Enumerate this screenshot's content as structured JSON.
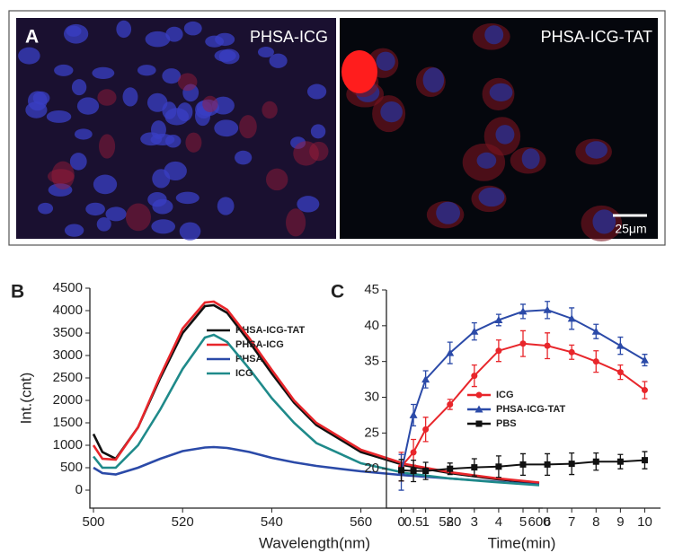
{
  "figure": {
    "panels": [
      "A",
      "B",
      "C"
    ],
    "image_labels": [
      "PHSA-ICG",
      "PHSA-ICG-TAT"
    ],
    "scale_bar": "25μm"
  },
  "chart_data": [
    {
      "type": "line",
      "x_label": "Wavelength(nm)",
      "y_label": "Int.(cnt)",
      "x": [
        500,
        502,
        505,
        510,
        515,
        520,
        525,
        527,
        530,
        535,
        540,
        545,
        550,
        560,
        570,
        580,
        590,
        600
      ],
      "xlim": [
        500,
        600
      ],
      "xticks": [
        500,
        520,
        540,
        560,
        580,
        600
      ],
      "ylim": [
        -400,
        4500
      ],
      "yticks": [
        0,
        500,
        1000,
        1500,
        2000,
        2500,
        3000,
        3500,
        4000,
        4500
      ],
      "series": [
        {
          "name": "PHSA-ICG-TAT",
          "color": "#111111",
          "values": [
            1250,
            850,
            700,
            1400,
            2500,
            3500,
            4100,
            4120,
            3950,
            3300,
            2600,
            1950,
            1450,
            850,
            550,
            380,
            250,
            150
          ]
        },
        {
          "name": "PHSA-ICG",
          "color": "#e8262b",
          "values": [
            1000,
            700,
            680,
            1400,
            2550,
            3600,
            4180,
            4200,
            4020,
            3380,
            2680,
            2000,
            1500,
            900,
            580,
            400,
            270,
            170
          ]
        },
        {
          "name": "PHSA",
          "color": "#2b4aa8",
          "values": [
            500,
            380,
            350,
            500,
            700,
            870,
            950,
            960,
            940,
            850,
            720,
            620,
            540,
            420,
            330,
            260,
            190,
            120
          ]
        },
        {
          "name": "ICG",
          "color": "#1f8a8a",
          "values": [
            750,
            500,
            500,
            1000,
            1800,
            2700,
            3400,
            3460,
            3300,
            2700,
            2050,
            1500,
            1050,
            600,
            380,
            260,
            180,
            110
          ]
        }
      ]
    },
    {
      "type": "errorline",
      "x_label": "Time(min)",
      "x": [
        0,
        0.5,
        1,
        2,
        3,
        4,
        5,
        6,
        7,
        8,
        9,
        10
      ],
      "xlim": [
        -0.5,
        10.5
      ],
      "xticks": [
        0,
        0.5,
        1,
        2,
        3,
        4,
        5,
        6,
        7,
        8,
        9,
        10
      ],
      "ylim": [
        14.5,
        45
      ],
      "yticks": [
        20,
        25,
        30,
        35,
        40,
        45
      ],
      "series": [
        {
          "name": "ICG",
          "color": "#e8262b",
          "marker": "circle",
          "values": [
            20.3,
            22.3,
            25.5,
            29,
            33,
            36.5,
            37.5,
            37.2,
            36.3,
            35,
            33.5,
            31
          ],
          "errors": [
            2,
            1.8,
            1.7,
            0.7,
            1.5,
            1.5,
            1.8,
            1.8,
            1,
            1.5,
            1,
            1.2
          ]
        },
        {
          "name": "PHSA-ICG-TAT",
          "color": "#2b4aa8",
          "marker": "triangle",
          "values": [
            19.5,
            27.5,
            32.5,
            36.2,
            39.2,
            40.8,
            42,
            42.2,
            41,
            39.2,
            37.2,
            35.2
          ],
          "errors": [
            2.5,
            1.5,
            1.2,
            1.5,
            1.2,
            0.8,
            1,
            1.2,
            1.5,
            1,
            1.2,
            0.8
          ]
        },
        {
          "name": "PBS",
          "color": "#111111",
          "marker": "square",
          "values": [
            19.8,
            19.7,
            19.7,
            20,
            20.2,
            20.3,
            20.6,
            20.6,
            20.7,
            21,
            21,
            21.2
          ],
          "errors": [
            1.5,
            1.5,
            1.2,
            0.8,
            1.2,
            1.5,
            1.5,
            1.5,
            1.5,
            1.2,
            1,
            1.2
          ]
        }
      ]
    }
  ]
}
